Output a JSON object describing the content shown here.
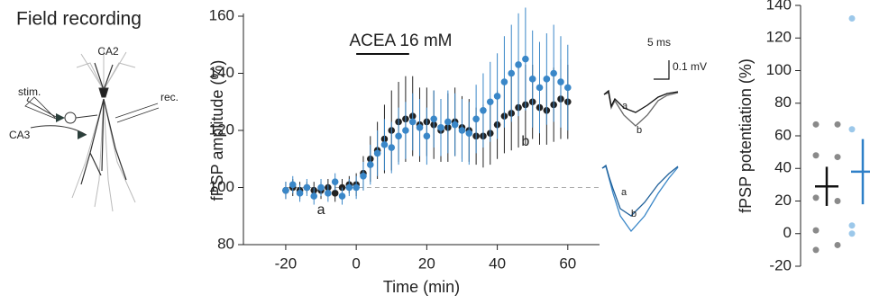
{
  "figure_title": "Field recording",
  "schematic": {
    "region_top": "CA2",
    "stim": "stim.",
    "rec": "rec.",
    "region_input": "CA3"
  },
  "traces": {
    "time_scale": "5 ms",
    "amp_scale": "0.1 mV",
    "black_a": "a",
    "black_b": "b",
    "blue_a": "a",
    "blue_b": "b"
  },
  "chart_data": [
    {
      "type": "errorline",
      "xlabel": "Time (min)",
      "ylabel": "fPSP amplitude (%)",
      "annotation": "ACEA 16 mM",
      "annotation_span": [
        0,
        15
      ],
      "baseline": 100,
      "labels": [
        "a",
        "b"
      ],
      "x": [
        -20,
        -18,
        -16,
        -14,
        -12,
        -10,
        -8,
        -6,
        -4,
        -2,
        0,
        2,
        4,
        6,
        8,
        10,
        12,
        14,
        16,
        18,
        20,
        22,
        24,
        26,
        28,
        30,
        32,
        34,
        36,
        38,
        40,
        42,
        44,
        46,
        48,
        50,
        52,
        54,
        56,
        58,
        60
      ],
      "series": [
        {
          "color": "#222222",
          "values": [
            99,
            100,
            99,
            100,
            99,
            99,
            100,
            98,
            100,
            101,
            101,
            105,
            110,
            113,
            117,
            120,
            123,
            124,
            125,
            122,
            123,
            122,
            120,
            121,
            123,
            121,
            120,
            118,
            118,
            119,
            122,
            125,
            126,
            128,
            129,
            130,
            128,
            127,
            129,
            131,
            130
          ],
          "errors": [
            3,
            3,
            3,
            2,
            3,
            3,
            3,
            3,
            3,
            3,
            4,
            6,
            8,
            10,
            12,
            14,
            14,
            15,
            14,
            13,
            12,
            12,
            11,
            12,
            12,
            11,
            11,
            10,
            11,
            11,
            12,
            13,
            13,
            14,
            14,
            13,
            13,
            12,
            13,
            14,
            13
          ]
        },
        {
          "color": "#3a87c8",
          "values": [
            99,
            101,
            98,
            100,
            97,
            100,
            98,
            102,
            97,
            100,
            100,
            104,
            108,
            112,
            115,
            114,
            118,
            120,
            123,
            121,
            118,
            124,
            121,
            123,
            122,
            120,
            119,
            124,
            127,
            130,
            132,
            137,
            140,
            143,
            145,
            138,
            135,
            138,
            140,
            137,
            135
          ],
          "errors": [
            3,
            3,
            3,
            3,
            3,
            3,
            3,
            3,
            3,
            3,
            4,
            5,
            7,
            8,
            9,
            9,
            10,
            10,
            10,
            10,
            10,
            10,
            10,
            11,
            11,
            11,
            11,
            12,
            13,
            14,
            15,
            16,
            17,
            18,
            18,
            17,
            16,
            16,
            17,
            16,
            15
          ]
        }
      ],
      "xlim": [
        -32,
        69
      ],
      "xticks": [
        -20,
        0,
        20,
        40,
        60
      ],
      "ylim": [
        80,
        160
      ],
      "yticks": [
        80,
        100,
        120,
        140,
        160
      ]
    },
    {
      "type": "strip",
      "ylabel": "fPSP potentiation (%)",
      "categories": [
        null,
        null
      ],
      "series": [
        {
          "color": "#8a8a8a",
          "mean_color": "#111111",
          "values": [
            67,
            67,
            48,
            47,
            22,
            20,
            2,
            -7,
            -10
          ],
          "mean": 29,
          "error": 12
        },
        {
          "color": "#9cc8ea",
          "mean_color": "#2f80c8",
          "values": [
            132,
            70,
            64,
            47,
            5,
            3,
            0,
            -3
          ],
          "mean": 38,
          "error": 20
        }
      ],
      "ylim": [
        -20,
        140
      ],
      "yticks": [
        -20,
        0,
        20,
        40,
        60,
        80,
        100,
        120,
        140
      ]
    }
  ]
}
